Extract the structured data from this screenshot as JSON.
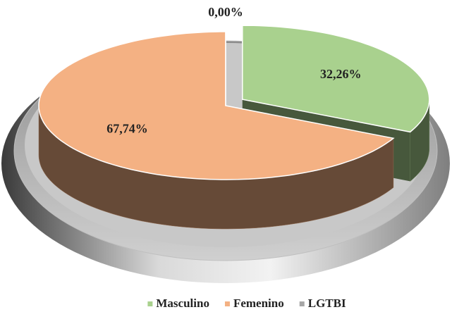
{
  "chart_data": {
    "type": "pie",
    "categories": [
      "Masculino",
      "Femenino",
      "LGTBI"
    ],
    "values": [
      32.26,
      67.74,
      0
    ],
    "value_labels": [
      "32,26%",
      "67,74%",
      "0,00%"
    ],
    "colors": [
      "#a9d18e",
      "#f4b183",
      "#a6a6a6"
    ],
    "legend": "bottom"
  }
}
